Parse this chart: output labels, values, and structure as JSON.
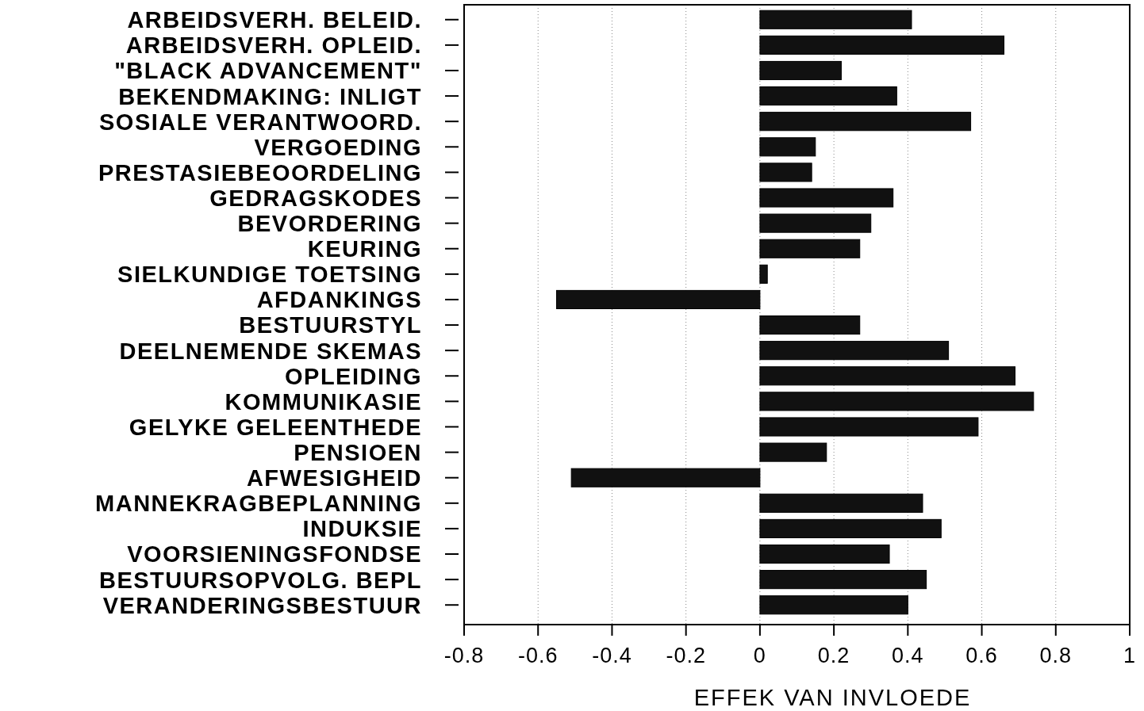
{
  "chart_data": {
    "type": "bar",
    "orientation": "horizontal",
    "xlabel": "EFFEK VAN INVLOEDE",
    "categories": [
      "ARBEIDSVERH. BELEID.",
      "ARBEIDSVERH. OPLEID.",
      "\"BLACK ADVANCEMENT\"",
      "BEKENDMAKING: INLIGT",
      "SOSIALE VERANTWOORD.",
      "VERGOEDING",
      "PRESTASIEBEOORDELING",
      "GEDRAGSKODES",
      "BEVORDERING",
      "KEURING",
      "SIELKUNDIGE TOETSING",
      "AFDANKINGS",
      "BESTUURSTYL",
      "DEELNEMENDE SKEMAS",
      "OPLEIDING",
      "KOMMUNIKASIE",
      "GELYKE GELEENTHEDE",
      "PENSIOEN",
      "AFWESIGHEID",
      "MANNEKRAGBEPLANNING",
      "INDUKSIE",
      "VOORSIENINGSFONDSE",
      "BESTUURSOPVOLG. BEPL",
      "VERANDERINGSBESTUUR"
    ],
    "values": [
      0.41,
      0.66,
      0.22,
      0.37,
      0.57,
      0.15,
      0.14,
      0.36,
      0.3,
      0.27,
      0.02,
      -0.55,
      0.27,
      0.51,
      0.69,
      0.74,
      0.59,
      0.18,
      -0.51,
      0.44,
      0.49,
      0.35,
      0.45,
      0.4
    ],
    "color": "#111111",
    "xlim": [
      -0.8,
      1
    ],
    "xticks": [
      {
        "value": -0.8,
        "label": "-0.8"
      },
      {
        "value": -0.6,
        "label": "-0.6"
      },
      {
        "value": -0.4,
        "label": "-0.4"
      },
      {
        "value": -0.2,
        "label": "-0.2"
      },
      0,
      0.2,
      0.4,
      0.6,
      0.8,
      1
    ],
    "grid": "x"
  }
}
